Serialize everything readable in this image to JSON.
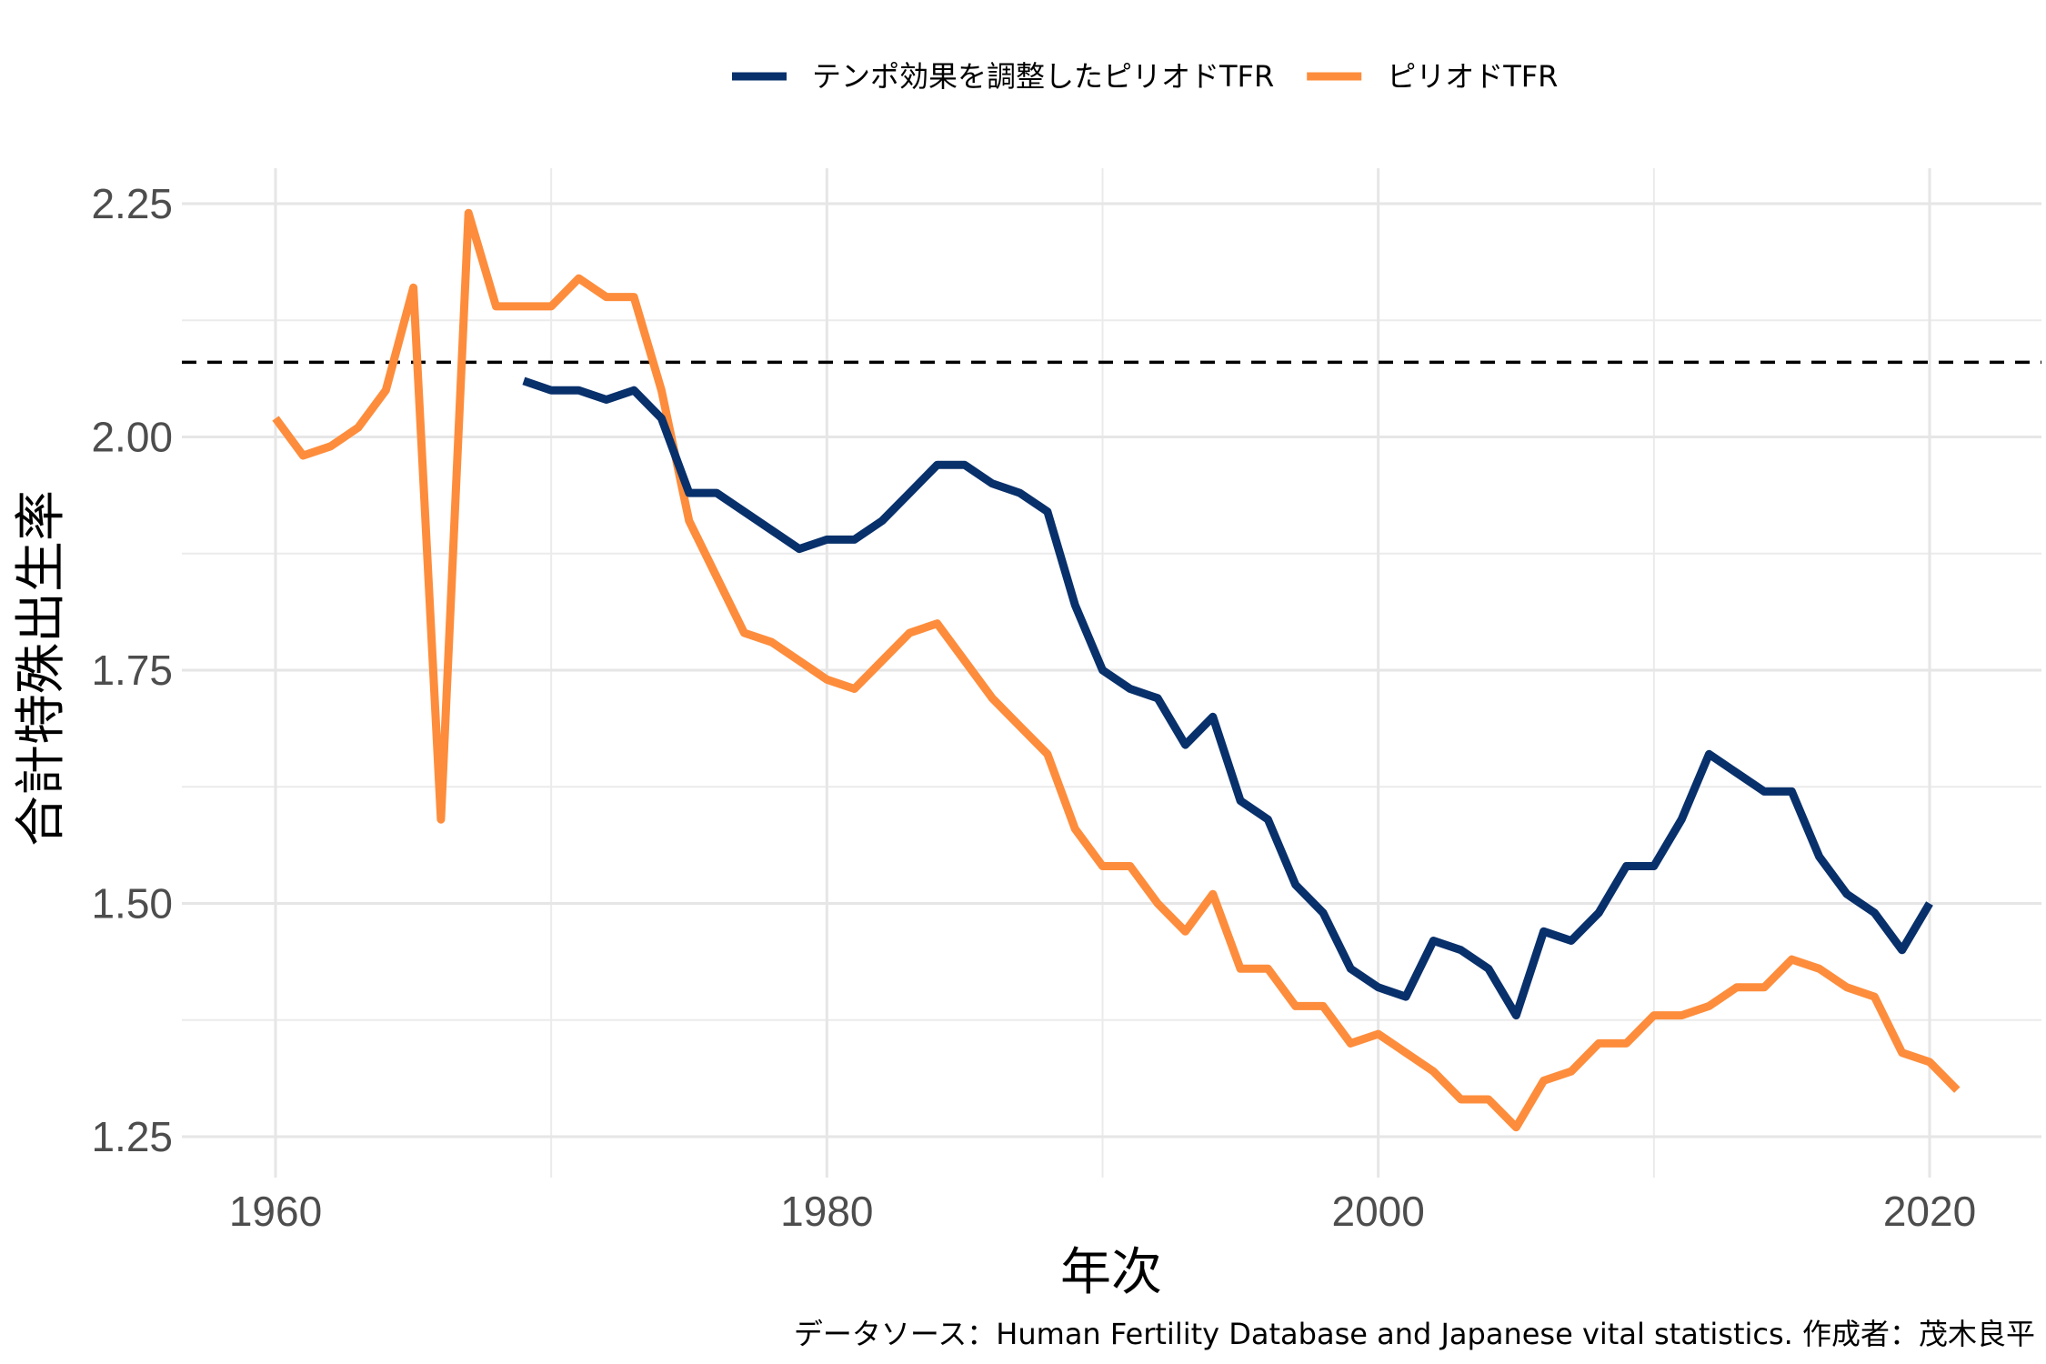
{
  "chart_data": {
    "type": "line",
    "title": "",
    "xlabel": "年次",
    "ylabel": "合計特殊出生率",
    "caption": "データソース：Human Fertility Database and Japanese vital statistics. 作成者：茂木良平",
    "xlim": [
      1960,
      2021
    ],
    "ylim": [
      1.25,
      2.25
    ],
    "x_ticks": [
      1960,
      1980,
      2000,
      2020
    ],
    "y_ticks": [
      1.25,
      1.5,
      1.75,
      2.0,
      2.25
    ],
    "y_tick_labels": [
      "1.25",
      "1.50",
      "1.75",
      "2.00",
      "2.25"
    ],
    "grid": true,
    "legend_position": "top",
    "reference_line": {
      "y": 2.08,
      "style": "dashed",
      "color": "#000000"
    },
    "series": [
      {
        "name": "テンポ効果を調整したピリオドTFR",
        "color": "#08306b",
        "x": [
          1969,
          1970,
          1971,
          1972,
          1973,
          1974,
          1975,
          1976,
          1977,
          1978,
          1979,
          1980,
          1981,
          1982,
          1983,
          1984,
          1985,
          1986,
          1987,
          1988,
          1989,
          1990,
          1991,
          1992,
          1993,
          1994,
          1995,
          1996,
          1997,
          1998,
          1999,
          2000,
          2001,
          2002,
          2003,
          2004,
          2005,
          2006,
          2007,
          2008,
          2009,
          2010,
          2011,
          2012,
          2013,
          2014,
          2015,
          2016,
          2017,
          2018,
          2019,
          2020
        ],
        "values": [
          2.06,
          2.05,
          2.05,
          2.04,
          2.05,
          2.02,
          1.94,
          1.94,
          1.92,
          1.9,
          1.88,
          1.89,
          1.89,
          1.91,
          1.94,
          1.97,
          1.97,
          1.95,
          1.94,
          1.92,
          1.82,
          1.75,
          1.73,
          1.72,
          1.67,
          1.7,
          1.61,
          1.59,
          1.52,
          1.49,
          1.43,
          1.41,
          1.4,
          1.46,
          1.45,
          1.43,
          1.38,
          1.47,
          1.46,
          1.49,
          1.54,
          1.54,
          1.59,
          1.66,
          1.64,
          1.62,
          1.62,
          1.55,
          1.51,
          1.49,
          1.45,
          1.5
        ]
      },
      {
        "name": "ピリオドTFR",
        "color": "#fd8d3c",
        "x": [
          1960,
          1961,
          1962,
          1963,
          1964,
          1965,
          1966,
          1967,
          1968,
          1969,
          1970,
          1971,
          1972,
          1973,
          1974,
          1975,
          1976,
          1977,
          1978,
          1979,
          1980,
          1981,
          1982,
          1983,
          1984,
          1985,
          1986,
          1987,
          1988,
          1989,
          1990,
          1991,
          1992,
          1993,
          1994,
          1995,
          1996,
          1997,
          1998,
          1999,
          2000,
          2001,
          2002,
          2003,
          2004,
          2005,
          2006,
          2007,
          2008,
          2009,
          2010,
          2011,
          2012,
          2013,
          2014,
          2015,
          2016,
          2017,
          2018,
          2019,
          2020,
          2021
        ],
        "values": [
          2.02,
          1.98,
          1.99,
          2.01,
          2.05,
          2.16,
          1.59,
          2.24,
          2.14,
          2.14,
          2.14,
          2.17,
          2.15,
          2.15,
          2.05,
          1.91,
          1.85,
          1.79,
          1.78,
          1.76,
          1.74,
          1.73,
          1.76,
          1.79,
          1.8,
          1.76,
          1.72,
          1.69,
          1.66,
          1.58,
          1.54,
          1.54,
          1.5,
          1.47,
          1.51,
          1.43,
          1.43,
          1.39,
          1.39,
          1.35,
          1.36,
          1.34,
          1.32,
          1.29,
          1.29,
          1.26,
          1.31,
          1.32,
          1.35,
          1.35,
          1.38,
          1.38,
          1.39,
          1.41,
          1.41,
          1.44,
          1.43,
          1.41,
          1.4,
          1.34,
          1.33,
          1.3
        ]
      }
    ]
  }
}
